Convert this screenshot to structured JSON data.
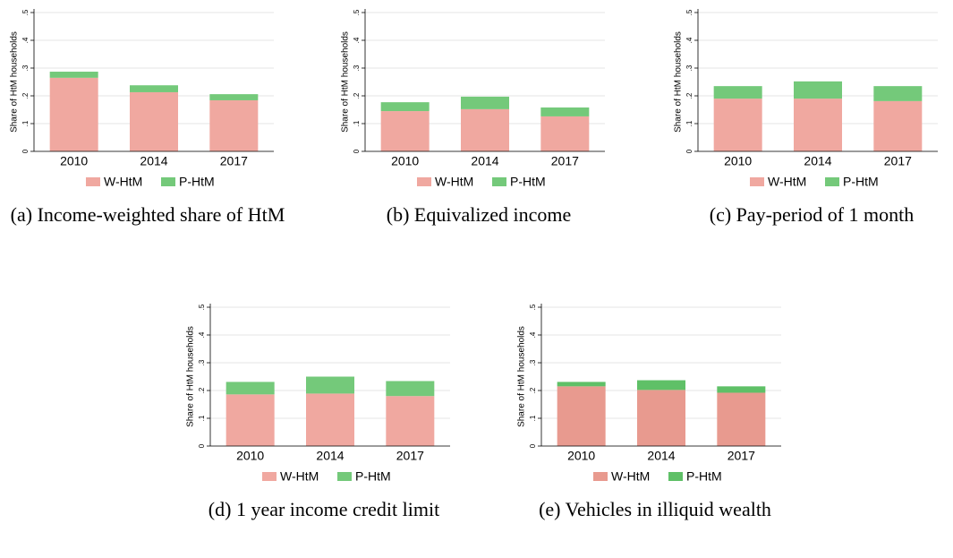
{
  "chart_data": [
    {
      "type": "stacked_bar",
      "caption": "(a) Income-weighted share of HtM",
      "ylabel": "Share of HtM households",
      "categories": [
        "2010",
        "2014",
        "2017"
      ],
      "series": [
        {
          "name": "W-HtM",
          "color": "#f0a8a0",
          "values": [
            0.265,
            0.213,
            0.184
          ]
        },
        {
          "name": "P-HtM",
          "color": "#74c97a",
          "values": [
            0.022,
            0.025,
            0.022
          ]
        }
      ],
      "ylim": [
        0,
        0.5
      ],
      "yticks": [
        0,
        {
          "value": 0.1,
          "label": ".1"
        },
        {
          "value": 0.2,
          "label": ".2"
        },
        {
          "value": 0.3,
          "label": ".3"
        },
        {
          "value": 0.4,
          "label": ".4"
        },
        {
          "value": 0.5,
          "label": ".5"
        }
      ],
      "grid": true,
      "legend": "bottom"
    },
    {
      "type": "stacked_bar",
      "caption": "(b) Equivalized income",
      "ylabel": "Share of HtM households",
      "categories": [
        "2010",
        "2014",
        "2017"
      ],
      "series": [
        {
          "name": "W-HtM",
          "color": "#f0a8a0",
          "values": [
            0.145,
            0.152,
            0.126
          ]
        },
        {
          "name": "P-HtM",
          "color": "#74c97a",
          "values": [
            0.032,
            0.045,
            0.032
          ]
        }
      ],
      "ylim": [
        0,
        0.5
      ],
      "yticks": [
        0,
        {
          "value": 0.1,
          "label": ".1"
        },
        {
          "value": 0.2,
          "label": ".2"
        },
        {
          "value": 0.3,
          "label": ".3"
        },
        {
          "value": 0.4,
          "label": ".4"
        },
        {
          "value": 0.5,
          "label": ".5"
        }
      ],
      "grid": true,
      "legend": "bottom"
    },
    {
      "type": "stacked_bar",
      "caption": "(c) Pay-period of 1 month",
      "ylabel": "Share of HtM households",
      "categories": [
        "2010",
        "2014",
        "2017"
      ],
      "series": [
        {
          "name": "W-HtM",
          "color": "#f0a8a0",
          "values": [
            0.19,
            0.19,
            0.181
          ]
        },
        {
          "name": "P-HtM",
          "color": "#74c97a",
          "values": [
            0.045,
            0.062,
            0.054
          ]
        }
      ],
      "ylim": [
        0,
        0.5
      ],
      "yticks": [
        0,
        {
          "value": 0.1,
          "label": ".1"
        },
        {
          "value": 0.2,
          "label": ".2"
        },
        {
          "value": 0.3,
          "label": ".3"
        },
        {
          "value": 0.4,
          "label": ".4"
        },
        {
          "value": 0.5,
          "label": ".5"
        }
      ],
      "grid": true,
      "legend": "bottom"
    },
    {
      "type": "stacked_bar",
      "caption": "(d) 1 year income credit limit",
      "ylabel": "Share of HtM households",
      "categories": [
        "2010",
        "2014",
        "2017"
      ],
      "series": [
        {
          "name": "W-HtM",
          "color": "#f0a8a0",
          "values": [
            0.186,
            0.189,
            0.18
          ]
        },
        {
          "name": "P-HtM",
          "color": "#74c97a",
          "values": [
            0.045,
            0.061,
            0.054
          ]
        }
      ],
      "ylim": [
        0,
        0.5
      ],
      "yticks": [
        0,
        {
          "value": 0.1,
          "label": ".1"
        },
        {
          "value": 0.2,
          "label": ".2"
        },
        {
          "value": 0.3,
          "label": ".3"
        },
        {
          "value": 0.4,
          "label": ".4"
        },
        {
          "value": 0.5,
          "label": ".5"
        }
      ],
      "grid": true,
      "legend": "bottom"
    },
    {
      "type": "stacked_bar",
      "caption": "(e) Vehicles in illiquid wealth",
      "ylabel": "Share of HtM households",
      "categories": [
        "2010",
        "2014",
        "2017"
      ],
      "series": [
        {
          "name": "W-HtM",
          "color": "#e89a8f",
          "values": [
            0.215,
            0.202,
            0.192
          ]
        },
        {
          "name": "P-HtM",
          "color": "#5fc067",
          "values": [
            0.016,
            0.035,
            0.023
          ]
        }
      ],
      "ylim": [
        0,
        0.5
      ],
      "yticks": [
        0,
        {
          "value": 0.1,
          "label": ".1"
        },
        {
          "value": 0.2,
          "label": ".2"
        },
        {
          "value": 0.3,
          "label": ".3"
        },
        {
          "value": 0.4,
          "label": ".4"
        },
        {
          "value": 0.5,
          "label": ".5"
        }
      ],
      "grid": true,
      "legend": "bottom"
    }
  ]
}
